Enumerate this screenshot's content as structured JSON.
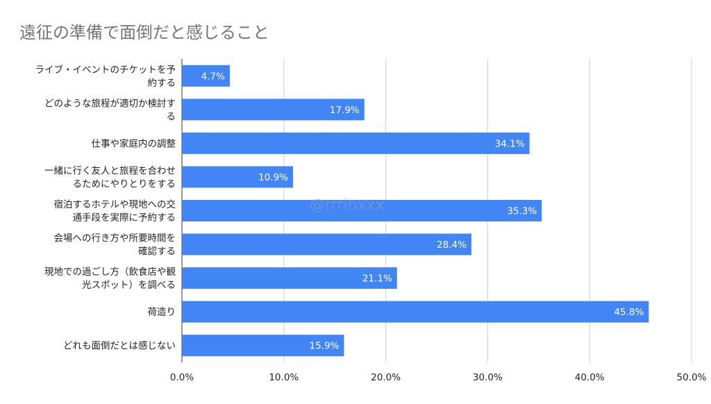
{
  "chart_data": {
    "type": "bar",
    "orientation": "horizontal",
    "title": "遠征の準備で面倒だと感じること",
    "categories": [
      [
        "ライブ・イベントのチケットを予",
        "約する"
      ],
      [
        "どのような旅程が適切か検討す",
        "る"
      ],
      [
        "仕事や家庭内の調整"
      ],
      [
        "一緒に行く友人と旅程を合わせ",
        "るためにやりとりをする"
      ],
      [
        "宿泊するホテルや現地への交",
        "通手段を実際に予約する"
      ],
      [
        "会場への行き方や所要時間を",
        "確認する"
      ],
      [
        "現地での過ごし方（飲食店や観",
        "光スポット）を調べる"
      ],
      [
        "荷造り"
      ],
      [
        "どれも面倒だとは感じない"
      ]
    ],
    "values": [
      4.7,
      17.9,
      34.1,
      10.9,
      35.3,
      28.4,
      21.1,
      45.8,
      15.9
    ],
    "value_labels": [
      "4.7%",
      "17.9%",
      "34.1%",
      "10.9%",
      "35.3%",
      "28.4%",
      "21.1%",
      "45.8%",
      "15.9%"
    ],
    "x_ticks": [
      "0.0%",
      "10.0%",
      "20.0%",
      "30.0%",
      "40.0%",
      "50.0%"
    ],
    "xlim": [
      0,
      50
    ],
    "grid": true,
    "bar_color": "#4285f4",
    "watermark": "@rrrinxxx"
  }
}
